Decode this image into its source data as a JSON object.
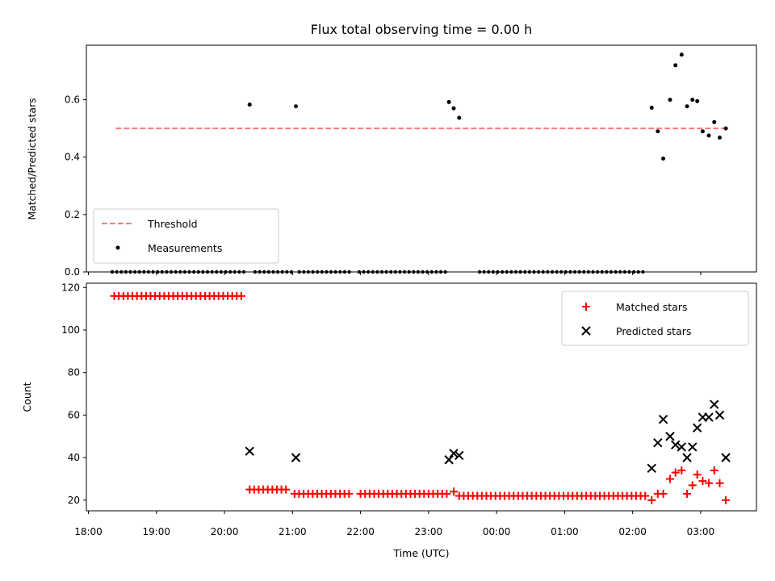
{
  "chart_data": [
    {
      "type": "scatter",
      "title": "Flux total observing time = 0.00 h",
      "xlabel": "",
      "ylabel": "Matched/Predicted stars",
      "ylim": [
        0,
        0.79
      ],
      "yticks": [
        0.0,
        0.2,
        0.4,
        0.6
      ],
      "ytick_labels": [
        "0.0",
        "0.2",
        "0.4",
        "0.6"
      ],
      "legend": {
        "placement": "lower-left",
        "entries": [
          "Threshold",
          "Measurements"
        ]
      },
      "threshold": {
        "name": "Threshold",
        "value": 0.5,
        "x_start": 18.4,
        "x_end": 27.4,
        "color": "#ff7b7b"
      },
      "series": [
        {
          "name": "Measurements",
          "color": "#000000",
          "points": [
            [
              20.37,
              0.583
            ],
            [
              21.05,
              0.577
            ],
            [
              23.3,
              0.592
            ],
            [
              23.37,
              0.57
            ],
            [
              23.45,
              0.537
            ],
            [
              26.28,
              0.572
            ],
            [
              26.37,
              0.49
            ],
            [
              26.45,
              0.395
            ],
            [
              26.55,
              0.6
            ],
            [
              26.63,
              0.72
            ],
            [
              26.72,
              0.757
            ],
            [
              26.8,
              0.577
            ],
            [
              26.88,
              0.6
            ],
            [
              26.95,
              0.595
            ],
            [
              27.03,
              0.49
            ],
            [
              27.12,
              0.475
            ],
            [
              27.2,
              0.522
            ],
            [
              27.28,
              0.468
            ],
            [
              27.37,
              0.5
            ]
          ],
          "zero_ranges": [
            [
              18.35,
              20.3
            ],
            [
              20.45,
              21.0
            ],
            [
              21.1,
              21.87
            ],
            [
              21.98,
              23.28
            ],
            [
              23.75,
              26.2
            ]
          ],
          "zero_step": 0.0667
        }
      ]
    },
    {
      "type": "scatter",
      "title": "",
      "xlabel": "Time (UTC)",
      "ylabel": "Count",
      "ylim": [
        15,
        122
      ],
      "xlim": [
        17.97,
        27.82
      ],
      "yticks": [
        20,
        40,
        60,
        80,
        100,
        120
      ],
      "ytick_labels": [
        "20",
        "40",
        "60",
        "80",
        "100",
        "120"
      ],
      "xticks": [
        18,
        19,
        20,
        21,
        22,
        23,
        24,
        25,
        26,
        27
      ],
      "xtick_labels": [
        "18:00",
        "19:00",
        "20:00",
        "21:00",
        "22:00",
        "23:00",
        "00:00",
        "01:00",
        "02:00",
        "03:00"
      ],
      "legend": {
        "placement": "top-right",
        "entries": [
          "Matched stars",
          "Predicted stars"
        ]
      },
      "series": [
        {
          "name": "Matched stars",
          "marker": "plus",
          "color": "#ff0000",
          "runs": [
            {
              "from": 18.38,
              "to": 20.3,
              "value": 116
            },
            {
              "from": 20.37,
              "to": 20.95,
              "value": 25
            },
            {
              "from": 21.03,
              "to": 21.85,
              "value": 23
            },
            {
              "from": 22.0,
              "to": 23.3,
              "value": 23
            },
            {
              "from": 23.37,
              "to": 23.37,
              "value": 24
            },
            {
              "from": 23.45,
              "to": 26.2,
              "value": 22
            }
          ],
          "run_step": 0.0667,
          "points": [
            [
              26.28,
              20
            ],
            [
              26.37,
              23
            ],
            [
              26.45,
              23
            ],
            [
              26.55,
              30
            ],
            [
              26.63,
              33
            ],
            [
              26.72,
              34
            ],
            [
              26.8,
              23
            ],
            [
              26.88,
              27
            ],
            [
              26.95,
              32
            ],
            [
              27.03,
              29
            ],
            [
              27.12,
              28
            ],
            [
              27.2,
              34
            ],
            [
              27.28,
              28
            ],
            [
              27.37,
              20
            ]
          ]
        },
        {
          "name": "Predicted stars",
          "marker": "x",
          "color": "#000000",
          "points": [
            [
              20.37,
              43
            ],
            [
              21.05,
              40
            ],
            [
              23.3,
              39
            ],
            [
              23.37,
              42
            ],
            [
              23.45,
              41
            ],
            [
              26.28,
              35
            ],
            [
              26.37,
              47
            ],
            [
              26.45,
              58
            ],
            [
              26.55,
              50
            ],
            [
              26.63,
              46
            ],
            [
              26.72,
              45
            ],
            [
              26.8,
              40
            ],
            [
              26.88,
              45
            ],
            [
              26.95,
              54
            ],
            [
              27.03,
              59
            ],
            [
              27.12,
              59
            ],
            [
              27.2,
              65
            ],
            [
              27.28,
              60
            ],
            [
              27.37,
              40
            ]
          ]
        }
      ]
    }
  ]
}
